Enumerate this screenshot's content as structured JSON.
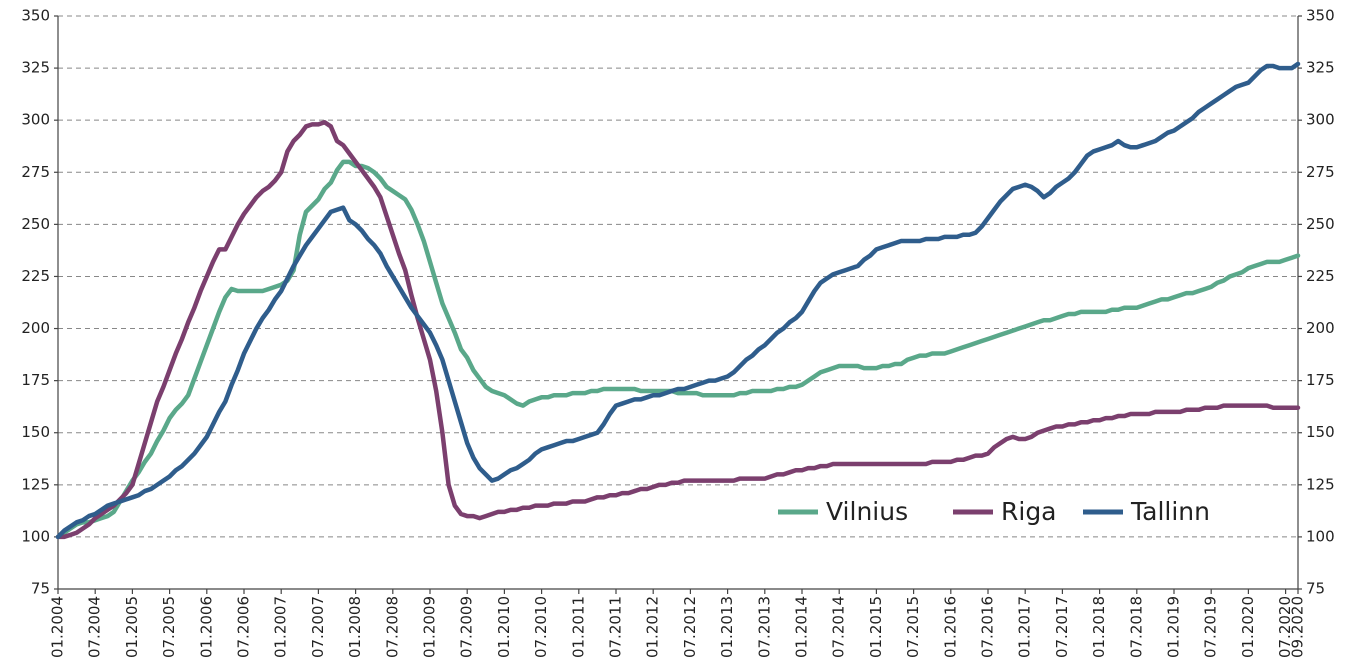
{
  "chart_data": {
    "type": "line",
    "categories": [
      "01.2004",
      null,
      null,
      null,
      null,
      null,
      "07.2004",
      null,
      null,
      null,
      null,
      null,
      "01.2005",
      null,
      null,
      null,
      null,
      null,
      "07.2005",
      null,
      null,
      null,
      null,
      null,
      "01.2006",
      null,
      null,
      null,
      null,
      null,
      "07.2006",
      null,
      null,
      null,
      null,
      null,
      "01.2007",
      null,
      null,
      null,
      null,
      null,
      "07.2007",
      null,
      null,
      null,
      null,
      null,
      "01.2008",
      null,
      null,
      null,
      null,
      null,
      "07.2008",
      null,
      null,
      null,
      null,
      null,
      "01.2009",
      null,
      null,
      null,
      null,
      null,
      "07.2009",
      null,
      null,
      null,
      null,
      null,
      "01.2010",
      null,
      null,
      null,
      null,
      null,
      "07.2010",
      null,
      null,
      null,
      null,
      null,
      "01.2011",
      null,
      null,
      null,
      null,
      null,
      "07.2011",
      null,
      null,
      null,
      null,
      null,
      "01.2012",
      null,
      null,
      null,
      null,
      null,
      "07.2012",
      null,
      null,
      null,
      null,
      null,
      "01.2013",
      null,
      null,
      null,
      null,
      null,
      "07.2013",
      null,
      null,
      null,
      null,
      null,
      "01.2014",
      null,
      null,
      null,
      null,
      null,
      "07.2014",
      null,
      null,
      null,
      null,
      null,
      "01.2015",
      null,
      null,
      null,
      null,
      null,
      "07.2015",
      null,
      null,
      null,
      null,
      null,
      "01.2016",
      null,
      null,
      null,
      null,
      null,
      "07.2016",
      null,
      null,
      null,
      null,
      null,
      "01.2017",
      null,
      null,
      null,
      null,
      null,
      "07.2017",
      null,
      null,
      null,
      null,
      null,
      "01.2018",
      null,
      null,
      null,
      null,
      null,
      "07.2018",
      null,
      null,
      null,
      null,
      null,
      "01.2019",
      null,
      null,
      null,
      null,
      null,
      "07.2019",
      null,
      null,
      null,
      null,
      null,
      "01.2020",
      null,
      null,
      null,
      null,
      null,
      "07.2020",
      null,
      "09.2020"
    ],
    "series": [
      {
        "name": "Vilnius",
        "color": "#5aa88a",
        "values": [
          100,
          102,
          104,
          106,
          107,
          107,
          108,
          109,
          110,
          112,
          117,
          122,
          127,
          131,
          136,
          140,
          146,
          151,
          157,
          161,
          164,
          168,
          176,
          184,
          192,
          200,
          208,
          215,
          219,
          218,
          218,
          218,
          218,
          218,
          219,
          220,
          221,
          223,
          228,
          245,
          256,
          259,
          262,
          267,
          270,
          276,
          280,
          280,
          278,
          278,
          277,
          275,
          272,
          268,
          266,
          264,
          262,
          257,
          250,
          242,
          232,
          222,
          212,
          205,
          198,
          190,
          186,
          180,
          176,
          172,
          170,
          169,
          168,
          166,
          164,
          163,
          165,
          166,
          167,
          167,
          168,
          168,
          168,
          169,
          169,
          169,
          170,
          170,
          171,
          171,
          171,
          171,
          171,
          171,
          170,
          170,
          170,
          170,
          170,
          170,
          169,
          169,
          169,
          169,
          168,
          168,
          168,
          168,
          168,
          168,
          169,
          169,
          170,
          170,
          170,
          170,
          171,
          171,
          172,
          172,
          173,
          175,
          177,
          179,
          180,
          181,
          182,
          182,
          182,
          182,
          181,
          181,
          181,
          182,
          182,
          183,
          183,
          185,
          186,
          187,
          187,
          188,
          188,
          188,
          189,
          190,
          191,
          192,
          193,
          194,
          195,
          196,
          197,
          198,
          199,
          200,
          201,
          202,
          203,
          204,
          204,
          205,
          206,
          207,
          207,
          208,
          208,
          208,
          208,
          208,
          209,
          209,
          210,
          210,
          210,
          211,
          212,
          213,
          214,
          214,
          215,
          216,
          217,
          217,
          218,
          219,
          220,
          222,
          223,
          225,
          226,
          227,
          229,
          230,
          231,
          232,
          232,
          232,
          233,
          234,
          235
        ]
      },
      {
        "name": "Riga",
        "color": "#7b3f6e",
        "values": [
          100,
          100,
          101,
          102,
          104,
          106,
          109,
          111,
          113,
          115,
          118,
          121,
          125,
          135,
          145,
          155,
          165,
          172,
          180,
          188,
          195,
          203,
          210,
          218,
          225,
          232,
          238,
          238,
          244,
          250,
          255,
          259,
          263,
          266,
          268,
          271,
          275,
          285,
          290,
          293,
          297,
          298,
          298,
          299,
          297,
          290,
          288,
          284,
          280,
          276,
          272,
          268,
          263,
          254,
          245,
          236,
          228,
          216,
          205,
          195,
          185,
          170,
          150,
          125,
          115,
          111,
          110,
          110,
          109,
          110,
          111,
          112,
          112,
          113,
          113,
          114,
          114,
          115,
          115,
          115,
          116,
          116,
          116,
          117,
          117,
          117,
          118,
          119,
          119,
          120,
          120,
          121,
          121,
          122,
          123,
          123,
          124,
          125,
          125,
          126,
          126,
          127,
          127,
          127,
          127,
          127,
          127,
          127,
          127,
          127,
          128,
          128,
          128,
          128,
          128,
          129,
          130,
          130,
          131,
          132,
          132,
          133,
          133,
          134,
          134,
          135,
          135,
          135,
          135,
          135,
          135,
          135,
          135,
          135,
          135,
          135,
          135,
          135,
          135,
          135,
          135,
          136,
          136,
          136,
          136,
          137,
          137,
          138,
          139,
          139,
          140,
          143,
          145,
          147,
          148,
          147,
          147,
          148,
          150,
          151,
          152,
          153,
          153,
          154,
          154,
          155,
          155,
          156,
          156,
          157,
          157,
          158,
          158,
          159,
          159,
          159,
          159,
          160,
          160,
          160,
          160,
          160,
          161,
          161,
          161,
          162,
          162,
          162,
          163,
          163,
          163,
          163,
          163,
          163,
          163,
          163,
          162,
          162,
          162,
          162,
          162
        ]
      },
      {
        "name": "Tallinn",
        "color": "#2f5d8c",
        "values": [
          100,
          103,
          105,
          107,
          108,
          110,
          111,
          113,
          115,
          116,
          117,
          118,
          119,
          120,
          122,
          123,
          125,
          127,
          129,
          132,
          134,
          137,
          140,
          144,
          148,
          154,
          160,
          165,
          173,
          180,
          188,
          194,
          200,
          205,
          209,
          214,
          218,
          224,
          230,
          235,
          240,
          244,
          248,
          252,
          256,
          257,
          258,
          252,
          250,
          247,
          243,
          240,
          236,
          230,
          225,
          220,
          215,
          210,
          206,
          202,
          198,
          192,
          185,
          175,
          165,
          155,
          145,
          138,
          133,
          130,
          127,
          128,
          130,
          132,
          133,
          135,
          137,
          140,
          142,
          143,
          144,
          145,
          146,
          146,
          147,
          148,
          149,
          150,
          154,
          159,
          163,
          164,
          165,
          166,
          166,
          167,
          168,
          168,
          169,
          170,
          171,
          171,
          172,
          173,
          174,
          175,
          175,
          176,
          177,
          179,
          182,
          185,
          187,
          190,
          192,
          195,
          198,
          200,
          203,
          205,
          208,
          213,
          218,
          222,
          224,
          226,
          227,
          228,
          229,
          230,
          233,
          235,
          238,
          239,
          240,
          241,
          242,
          242,
          242,
          242,
          243,
          243,
          243,
          244,
          244,
          244,
          245,
          245,
          246,
          249,
          253,
          257,
          261,
          264,
          267,
          268,
          269,
          268,
          266,
          263,
          265,
          268,
          270,
          272,
          275,
          279,
          283,
          285,
          286,
          287,
          288,
          290,
          288,
          287,
          287,
          288,
          289,
          290,
          292,
          294,
          295,
          297,
          299,
          301,
          304,
          306,
          308,
          310,
          312,
          314,
          316,
          317,
          318,
          321,
          324,
          326,
          326,
          325,
          325,
          325,
          327
        ]
      }
    ],
    "ylim": [
      75,
      350
    ],
    "yticks": [
      75,
      100,
      125,
      150,
      175,
      200,
      225,
      250,
      275,
      300,
      325,
      350
    ],
    "y2lim": [
      75,
      350
    ],
    "y2ticks": [
      75,
      100,
      125,
      150,
      175,
      200,
      225,
      250,
      275,
      300,
      325,
      350
    ],
    "grid": true,
    "legend": "lower right"
  }
}
